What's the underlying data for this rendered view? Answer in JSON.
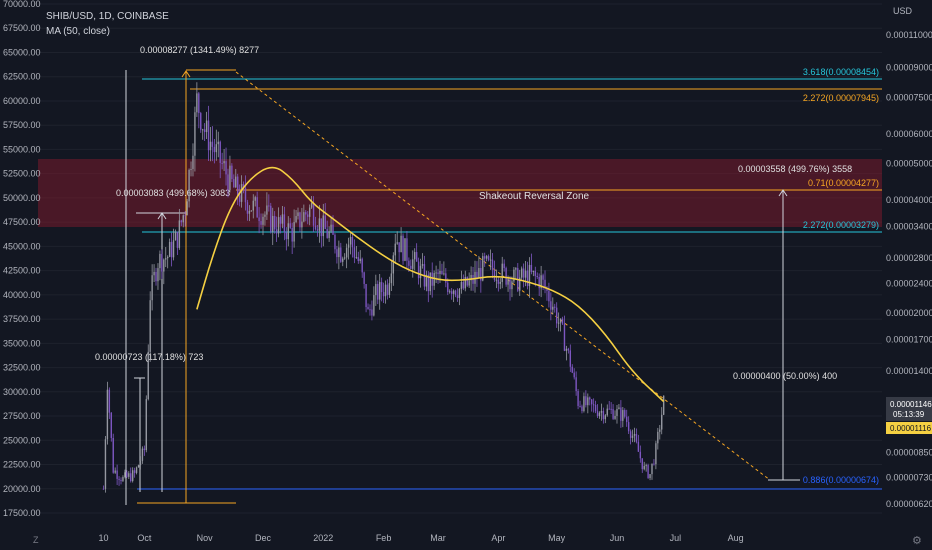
{
  "header": {
    "symbol_line": "SHIB/USD, 1D, COINBASE",
    "indicator_line": "MA (50, close)"
  },
  "currency": "USD",
  "price_tags": {
    "current": "0.00001146",
    "countdown": "05:13:39",
    "ma": "0.00001116"
  },
  "colors": {
    "background": "#131722",
    "candle_up": "#9598a1",
    "candle_down": "#7e57c2",
    "ma": "#f5d042",
    "zone": "#8e1b2e",
    "fib_orange": "#f6a623",
    "fib_teal": "#26c6da",
    "fib_blue": "#2962ff"
  },
  "chart_data": {
    "type": "candlestick",
    "title": "",
    "left_axis": {
      "min": 17500,
      "max": 70000,
      "ticks": [
        "70000.00",
        "67500.00",
        "65000.00",
        "62500.00",
        "60000.00",
        "57500.00",
        "55000.00",
        "52500.00",
        "50000.00",
        "47500.00",
        "45000.00",
        "42500.00",
        "40000.00",
        "37500.00",
        "35000.00",
        "32500.00",
        "30000.00",
        "27500.00",
        "25000.00",
        "22500.00",
        "20000.00",
        "17500.00"
      ]
    },
    "right_axis": {
      "scale": "log",
      "ticks": [
        "0.00011000",
        "0.00009000",
        "0.00007500",
        "0.00006000",
        "0.00005000",
        "0.00004000",
        "0.00003400",
        "0.00002800",
        "0.00002400",
        "0.00002000",
        "0.00001700",
        "0.00001400",
        "0.00001100",
        "0.00000850",
        "0.00000730",
        "0.00000620"
      ]
    },
    "x_axis_ticks": [
      "10",
      "Oct",
      "Nov",
      "Dec",
      "2022",
      "Feb",
      "Mar",
      "Apr",
      "May",
      "Jun",
      "Jul",
      "Aug"
    ],
    "zone_label": "Shakeout Reversal Zone",
    "fib_levels": [
      {
        "label": "3.618(0.00008454)"
      },
      {
        "label": "2.272(0.00007945)"
      },
      {
        "label": "0.71(0.00004277)"
      },
      {
        "label": "2.272(0.00003279)"
      },
      {
        "label": "0.886(0.00000674)"
      }
    ],
    "measure_labels": [
      "0.00008277 (1341.49%) 8277",
      "0.00003083 (499.68%) 3083",
      "0.00000723 (117.18%) 723",
      "0.00003558 (499.76%) 3558",
      "0.00000400 (50.00%) 400"
    ],
    "price_path": [
      [
        "2021-09-10",
        20000
      ],
      [
        "2021-09-12",
        31000
      ],
      [
        "2021-09-15",
        22000
      ],
      [
        "2021-09-20",
        21000
      ],
      [
        "2021-09-26",
        21500
      ],
      [
        "2021-10-01",
        24000
      ],
      [
        "2021-10-04",
        40000
      ],
      [
        "2021-10-08",
        43500
      ],
      [
        "2021-10-13",
        44000
      ],
      [
        "2021-10-18",
        46000
      ],
      [
        "2021-10-22",
        49000
      ],
      [
        "2021-10-26",
        56000
      ],
      [
        "2021-10-28",
        60000
      ],
      [
        "2021-11-01",
        57000
      ],
      [
        "2021-11-06",
        55000
      ],
      [
        "2021-11-11",
        53000
      ],
      [
        "2021-11-16",
        51000
      ],
      [
        "2021-11-21",
        50000
      ],
      [
        "2021-11-26",
        49000
      ],
      [
        "2021-12-01",
        48500
      ],
      [
        "2021-12-06",
        47500
      ],
      [
        "2021-12-11",
        47000
      ],
      [
        "2021-12-16",
        46500
      ],
      [
        "2021-12-21",
        48000
      ],
      [
        "2021-12-26",
        49000
      ],
      [
        "2021-12-31",
        47000
      ],
      [
        "2022-01-05",
        46000
      ],
      [
        "2022-01-10",
        44500
      ],
      [
        "2022-01-15",
        45500
      ],
      [
        "2022-01-20",
        43000
      ],
      [
        "2022-01-24",
        38000
      ],
      [
        "2022-01-28",
        40000
      ],
      [
        "2022-02-03",
        41000
      ],
      [
        "2022-02-07",
        46000
      ],
      [
        "2022-02-12",
        44500
      ],
      [
        "2022-02-18",
        43000
      ],
      [
        "2022-02-24",
        41000
      ],
      [
        "2022-03-01",
        42000
      ],
      [
        "2022-03-07",
        41000
      ],
      [
        "2022-03-13",
        40500
      ],
      [
        "2022-03-19",
        41500
      ],
      [
        "2022-03-25",
        43000
      ],
      [
        "2022-03-31",
        42500
      ],
      [
        "2022-04-05",
        42000
      ],
      [
        "2022-04-11",
        41500
      ],
      [
        "2022-04-17",
        42000
      ],
      [
        "2022-04-23",
        41500
      ],
      [
        "2022-04-29",
        39000
      ],
      [
        "2022-05-04",
        36000
      ],
      [
        "2022-05-08",
        33000
      ],
      [
        "2022-05-12",
        29000
      ],
      [
        "2022-05-18",
        28500
      ],
      [
        "2022-05-24",
        28000
      ],
      [
        "2022-05-30",
        28000
      ],
      [
        "2022-06-05",
        27500
      ],
      [
        "2022-06-10",
        25000
      ],
      [
        "2022-06-15",
        22000
      ],
      [
        "2022-06-18",
        21500
      ],
      [
        "2022-06-21",
        24000
      ],
      [
        "2022-06-25",
        29000
      ]
    ],
    "ma_path": [
      [
        "2021-10-28",
        38500
      ],
      [
        "2021-11-05",
        44000
      ],
      [
        "2021-11-14",
        49000
      ],
      [
        "2021-11-24",
        52000
      ],
      [
        "2021-12-06",
        53500
      ],
      [
        "2021-12-16",
        52000
      ],
      [
        "2021-12-26",
        49500
      ],
      [
        "2022-01-05",
        48000
      ],
      [
        "2022-01-18",
        46000
      ],
      [
        "2022-02-01",
        44000
      ],
      [
        "2022-02-14",
        42500
      ],
      [
        "2022-03-01",
        41500
      ],
      [
        "2022-03-15",
        41500
      ],
      [
        "2022-03-30",
        42000
      ],
      [
        "2022-04-14",
        41500
      ],
      [
        "2022-04-29",
        40500
      ],
      [
        "2022-05-12",
        39000
      ],
      [
        "2022-05-26",
        36000
      ],
      [
        "2022-06-09",
        32000
      ],
      [
        "2022-06-25",
        29000
      ]
    ]
  }
}
